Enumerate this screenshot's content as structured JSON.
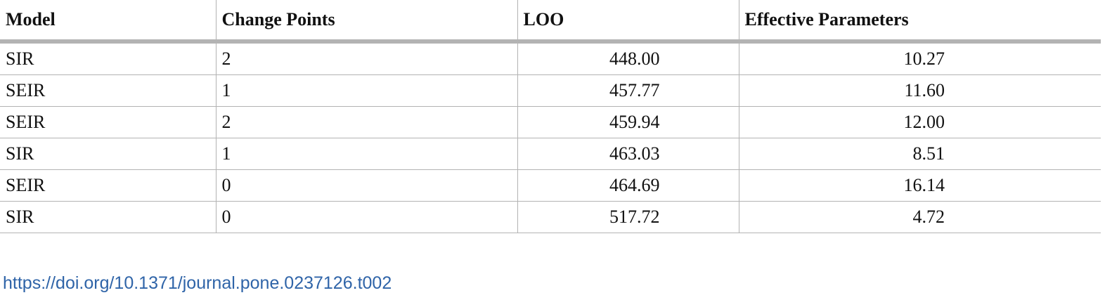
{
  "table": {
    "headers": [
      "Model",
      "Change Points",
      "LOO",
      "Effective Parameters"
    ],
    "rows": [
      [
        "SIR",
        "2",
        "448.00",
        "10.27"
      ],
      [
        "SEIR",
        "1",
        "457.77",
        "11.60"
      ],
      [
        "SEIR",
        "2",
        "459.94",
        "12.00"
      ],
      [
        "SIR",
        "1",
        "463.03",
        "8.51"
      ],
      [
        "SEIR",
        "0",
        "464.69",
        "16.14"
      ],
      [
        "SIR",
        "0",
        "517.72",
        "4.72"
      ]
    ]
  },
  "footer": {
    "doi_link": "https://doi.org/10.1371/journal.pone.0237126.t002"
  }
}
